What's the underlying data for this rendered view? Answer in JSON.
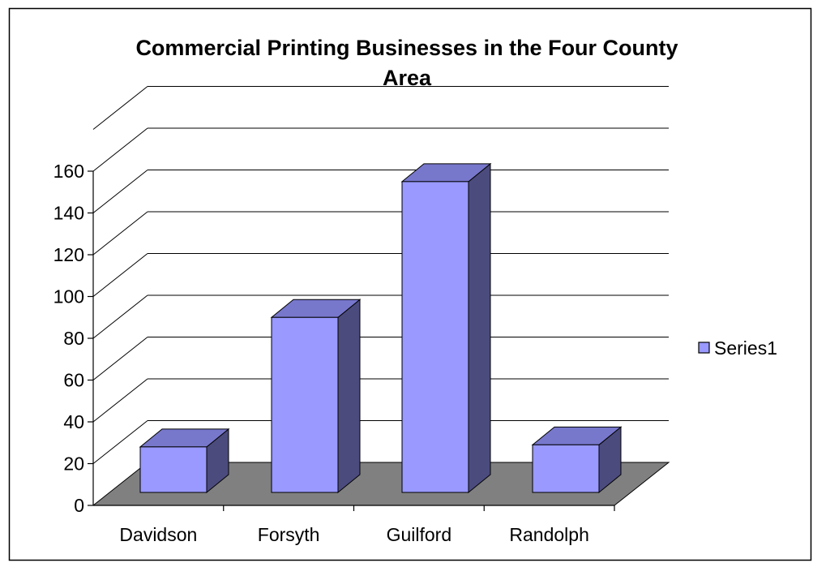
{
  "chart_data": {
    "type": "bar",
    "style": "3d-column",
    "title_lines": [
      "Commercial Printing Businesses in the Four County",
      "Area"
    ],
    "categories": [
      "Davidson",
      "Forsyth",
      "Guilford",
      "Randolph"
    ],
    "series": [
      {
        "name": "Series1",
        "values": [
          28,
          90,
          155,
          29
        ]
      }
    ],
    "yticks": [
      "0",
      "20",
      "40",
      "60",
      "80",
      "100",
      "120",
      "140",
      "160"
    ],
    "ylim": [
      0,
      180
    ],
    "grid": true,
    "legend_position": "right"
  },
  "colors": {
    "bar_front": "#9999FF",
    "bar_top": "#7777CC",
    "bar_side": "#4B4B7E",
    "floor": "#808080",
    "border": "#000000",
    "background": "#FFFFFF"
  }
}
